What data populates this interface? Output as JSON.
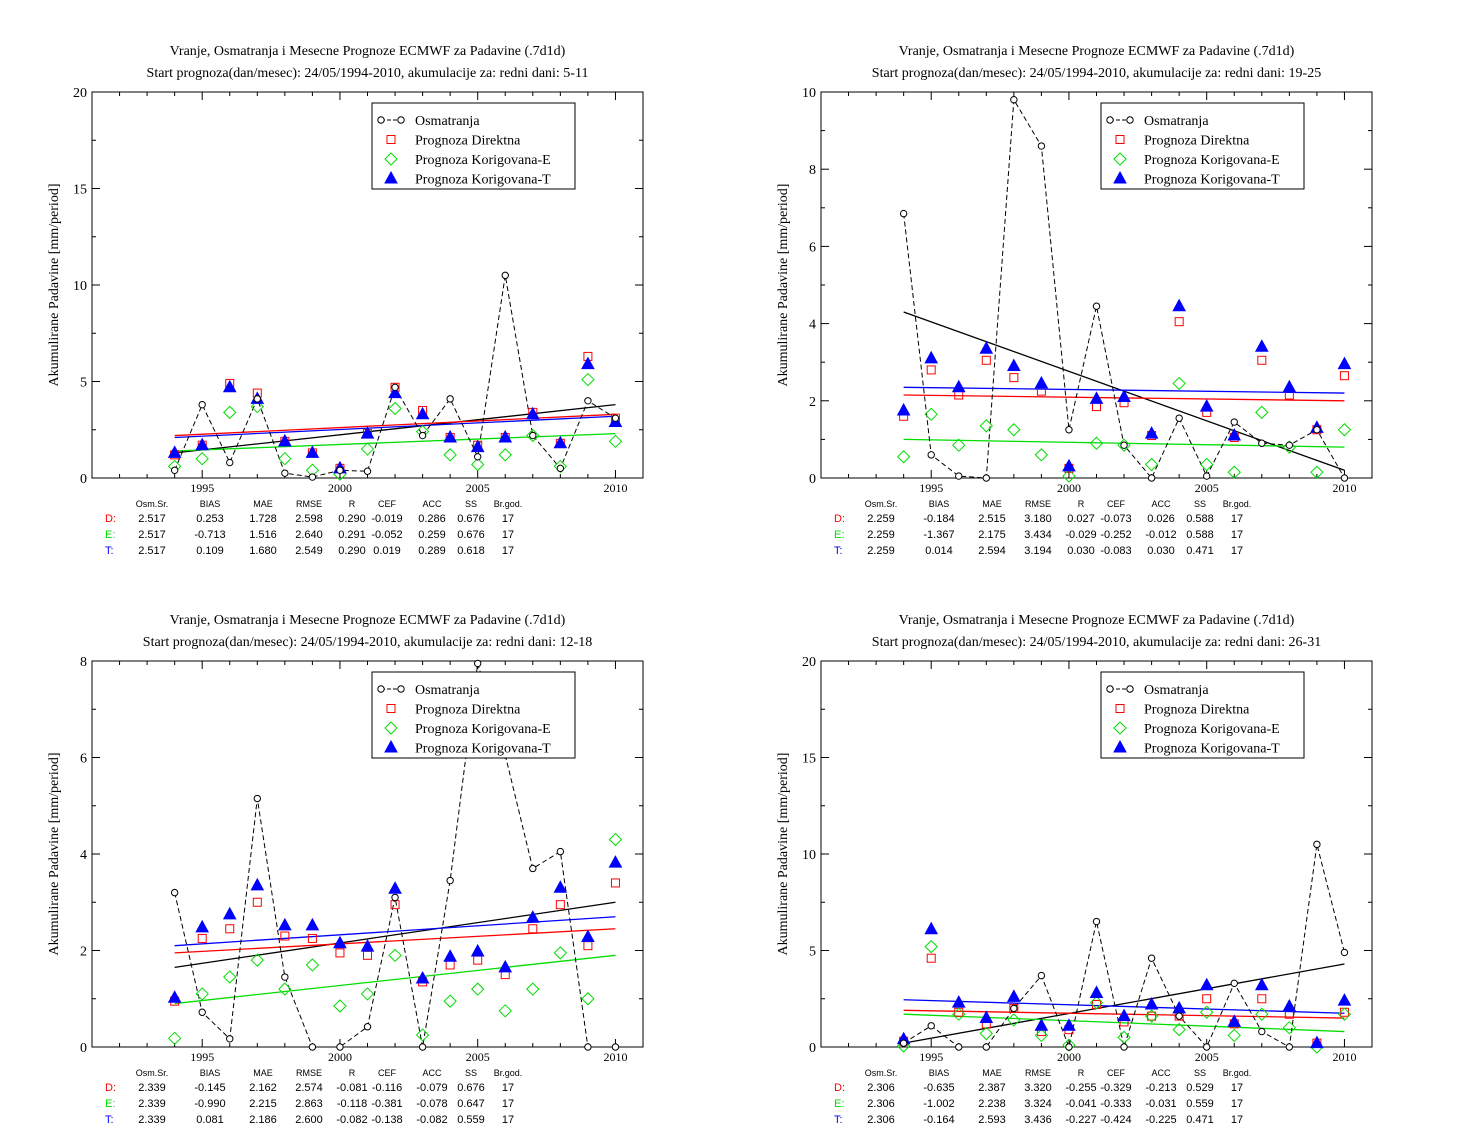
{
  "stats_header": [
    "Osm.Sr.",
    "BIAS",
    "MAE",
    "RMSE",
    "R",
    "CEF",
    "ACC",
    "SS",
    "Br.god."
  ],
  "colors": {
    "obs": "#000000",
    "direct": "#ff0000",
    "corrE": "#00dd00",
    "corrT": "#0000ff"
  },
  "chart_data": [
    {
      "type": "scatter",
      "title": "Vranje, Osmatranja i Mesecne Prognoze ECMWF za Padavine (.7d1d)",
      "subtitle": "Start prognoza(dan/mesec): 24/05/1994-2010, akumulacije za: redni dani: 5-11",
      "ylabel": "Akumulirane Padavine [mm/period]",
      "xlabel": "",
      "xlim": [
        1991,
        2011
      ],
      "ylim": [
        0,
        20
      ],
      "xticks": [
        1995,
        2000,
        2005,
        2010
      ],
      "yticks": [
        0,
        5,
        10,
        15,
        20
      ],
      "grid": false,
      "legend_position": "top-right",
      "x": [
        1994,
        1995,
        1996,
        1997,
        1998,
        1999,
        2000,
        2001,
        2002,
        2003,
        2004,
        2005,
        2006,
        2007,
        2008,
        2009,
        2010
      ],
      "series": [
        {
          "name": "Osmatranja",
          "values": [
            0.4,
            3.8,
            0.8,
            4.1,
            0.25,
            0.05,
            0.4,
            0.35,
            4.7,
            2.2,
            4.1,
            1.1,
            10.5,
            2.2,
            0.5,
            4.0,
            3.1
          ]
        },
        {
          "name": "Prognoza Direktna",
          "values": [
            1.2,
            1.7,
            4.9,
            4.4,
            1.9,
            1.3,
            0.5,
            2.3,
            4.7,
            3.5,
            2.1,
            1.7,
            2.1,
            3.4,
            1.8,
            6.3,
            3.1
          ]
        },
        {
          "name": "Prognoza Korigovana-E",
          "values": [
            0.6,
            1.0,
            3.4,
            3.7,
            1.0,
            0.4,
            0.2,
            1.5,
            3.6,
            2.4,
            1.2,
            0.7,
            1.2,
            2.2,
            0.6,
            5.1,
            1.9
          ]
        },
        {
          "name": "Prognoza Korigovana-T",
          "values": [
            1.3,
            1.7,
            4.7,
            4.1,
            1.9,
            1.3,
            0.5,
            2.3,
            4.4,
            3.3,
            2.1,
            1.6,
            2.1,
            3.3,
            1.8,
            5.9,
            2.9
          ]
        }
      ],
      "trends": {
        "obs": [
          1.3,
          3.8
        ],
        "direct": [
          2.2,
          3.3
        ],
        "corrE": [
          1.4,
          2.3
        ],
        "corrT": [
          2.1,
          3.2
        ]
      },
      "stats": [
        {
          "label": "D:",
          "values": [
            "2.517",
            "0.253",
            "1.728",
            "2.598",
            "0.290",
            "-0.019",
            "0.286",
            "0.676",
            "17"
          ]
        },
        {
          "label": "E:",
          "values": [
            "2.517",
            "-0.713",
            "1.516",
            "2.640",
            "0.291",
            "-0.052",
            "0.259",
            "0.676",
            "17"
          ]
        },
        {
          "label": "T:",
          "values": [
            "2.517",
            "0.109",
            "1.680",
            "2.549",
            "0.290",
            "0.019",
            "0.289",
            "0.618",
            "17"
          ]
        }
      ]
    },
    {
      "type": "scatter",
      "title": "Vranje, Osmatranja i Mesecne Prognoze ECMWF za Padavine (.7d1d)",
      "subtitle": "Start prognoza(dan/mesec): 24/05/1994-2010, akumulacije za: redni dani: 19-25",
      "ylabel": "Akumulirane Padavine [mm/period]",
      "xlabel": "",
      "xlim": [
        1991,
        2011
      ],
      "ylim": [
        0,
        10
      ],
      "xticks": [
        1995,
        2000,
        2005,
        2010
      ],
      "yticks": [
        0,
        2,
        4,
        6,
        8,
        10
      ],
      "grid": false,
      "legend_position": "top-right",
      "x": [
        1994,
        1995,
        1996,
        1997,
        1998,
        1999,
        2000,
        2001,
        2002,
        2003,
        2004,
        2005,
        2006,
        2007,
        2008,
        2009,
        2010
      ],
      "series": [
        {
          "name": "Osmatranja",
          "values": [
            6.85,
            0.6,
            0.05,
            0.0,
            9.8,
            8.6,
            1.25,
            4.45,
            0.85,
            0.0,
            1.55,
            0.05,
            1.45,
            0.9,
            0.85,
            1.25,
            0.0
          ]
        },
        {
          "name": "Prognoza Direktna",
          "values": [
            1.6,
            2.8,
            2.15,
            3.05,
            2.6,
            2.25,
            0.25,
            1.85,
            1.95,
            1.1,
            4.05,
            1.7,
            1.05,
            3.05,
            2.15,
            1.25,
            2.65
          ]
        },
        {
          "name": "Prognoza Korigovana-E",
          "values": [
            0.55,
            1.65,
            0.85,
            1.35,
            1.25,
            0.6,
            0.05,
            0.9,
            0.85,
            0.35,
            2.45,
            0.35,
            0.15,
            1.7,
            0.8,
            0.15,
            1.25
          ]
        },
        {
          "name": "Prognoza Korigovana-T",
          "values": [
            1.75,
            3.1,
            2.35,
            3.35,
            2.9,
            2.45,
            0.3,
            2.05,
            2.1,
            1.15,
            4.45,
            1.85,
            1.1,
            3.4,
            2.35,
            1.3,
            2.95
          ]
        }
      ],
      "trends": {
        "obs": [
          4.3,
          0.2
        ],
        "direct": [
          2.15,
          2.0
        ],
        "corrE": [
          1.0,
          0.8
        ],
        "corrT": [
          2.35,
          2.2
        ]
      },
      "stats": [
        {
          "label": "D:",
          "values": [
            "2.259",
            "-0.184",
            "2.515",
            "3.180",
            "0.027",
            "-0.073",
            "0.026",
            "0.588",
            "17"
          ]
        },
        {
          "label": "E:",
          "values": [
            "2.259",
            "-1.367",
            "2.175",
            "3.434",
            "-0.029",
            "-0.252",
            "-0.012",
            "0.588",
            "17"
          ]
        },
        {
          "label": "T:",
          "values": [
            "2.259",
            "0.014",
            "2.594",
            "3.194",
            "0.030",
            "-0.083",
            "0.030",
            "0.471",
            "17"
          ]
        }
      ]
    },
    {
      "type": "scatter",
      "title": "Vranje, Osmatranja i Mesecne Prognoze ECMWF za Padavine (.7d1d)",
      "subtitle": "Start prognoza(dan/mesec): 24/05/1994-2010, akumulacije za: redni dani: 12-18",
      "ylabel": "Akumulirane Padavine [mm/period]",
      "xlabel": "",
      "xlim": [
        1991,
        2011
      ],
      "ylim": [
        0,
        8
      ],
      "xticks": [
        1995,
        2000,
        2005,
        2010
      ],
      "yticks": [
        0,
        2,
        4,
        6,
        8
      ],
      "grid": false,
      "legend_position": "top-right",
      "x": [
        1994,
        1995,
        1996,
        1997,
        1998,
        1999,
        2000,
        2001,
        2002,
        2003,
        2004,
        2005,
        2006,
        2007,
        2008,
        2009,
        2010
      ],
      "series": [
        {
          "name": "Osmatranja",
          "values": [
            3.2,
            0.72,
            0.17,
            5.15,
            1.45,
            0.0,
            0.0,
            0.42,
            3.1,
            0.0,
            3.45,
            7.95,
            6.05,
            3.7,
            4.05,
            0.0,
            0.0
          ]
        },
        {
          "name": "Prognoza Direktna",
          "values": [
            0.95,
            2.25,
            2.45,
            3.0,
            2.3,
            2.25,
            1.95,
            1.9,
            2.95,
            1.35,
            1.7,
            1.8,
            1.5,
            2.45,
            2.95,
            2.1,
            3.4
          ]
        },
        {
          "name": "Prognoza Korigovana-E",
          "values": [
            0.18,
            1.1,
            1.45,
            1.8,
            1.2,
            1.7,
            0.85,
            1.1,
            1.9,
            0.25,
            0.95,
            1.2,
            0.75,
            1.2,
            1.95,
            1.0,
            4.3
          ]
        },
        {
          "name": "Prognoza Korigovana-T",
          "values": [
            1.02,
            2.48,
            2.75,
            3.35,
            2.52,
            2.52,
            2.15,
            2.08,
            3.28,
            1.42,
            1.87,
            1.98,
            1.65,
            2.68,
            3.3,
            2.28,
            3.82
          ]
        }
      ],
      "trends": {
        "obs": [
          1.65,
          3.0
        ],
        "direct": [
          1.95,
          2.45
        ],
        "corrE": [
          0.9,
          1.9
        ],
        "corrT": [
          2.1,
          2.7
        ]
      },
      "stats": [
        {
          "label": "D:",
          "values": [
            "2.339",
            "-0.145",
            "2.162",
            "2.574",
            "-0.081",
            "-0.116",
            "-0.079",
            "0.676",
            "17"
          ]
        },
        {
          "label": "E:",
          "values": [
            "2.339",
            "-0.990",
            "2.215",
            "2.863",
            "-0.118",
            "-0.381",
            "-0.078",
            "0.647",
            "17"
          ]
        },
        {
          "label": "T:",
          "values": [
            "2.339",
            "0.081",
            "2.186",
            "2.600",
            "-0.082",
            "-0.138",
            "-0.082",
            "0.559",
            "17"
          ]
        }
      ]
    },
    {
      "type": "scatter",
      "title": "Vranje, Osmatranja i Mesecne Prognoze ECMWF za Padavine (.7d1d)",
      "subtitle": "Start prognoza(dan/mesec): 24/05/1994-2010, akumulacije za: redni dani: 26-31",
      "ylabel": "Akumulirane Padavine [mm/period]",
      "xlabel": "",
      "xlim": [
        1991,
        2011
      ],
      "ylim": [
        0,
        20
      ],
      "xticks": [
        1995,
        2000,
        2005,
        2010
      ],
      "yticks": [
        0,
        5,
        10,
        15,
        20
      ],
      "grid": false,
      "legend_position": "top-right",
      "x": [
        1994,
        1995,
        1996,
        1997,
        1998,
        1999,
        2000,
        2001,
        2002,
        2003,
        2004,
        2005,
        2006,
        2007,
        2008,
        2009,
        2010
      ],
      "series": [
        {
          "name": "Osmatranja",
          "values": [
            0.2,
            1.1,
            0.0,
            0.0,
            2.0,
            3.7,
            0.0,
            6.5,
            0.0,
            4.6,
            1.6,
            0.0,
            3.3,
            0.8,
            0.0,
            10.5,
            4.9
          ]
        },
        {
          "name": "Prognoza Direktna",
          "values": [
            0.3,
            4.6,
            1.8,
            1.2,
            2.0,
            0.8,
            0.9,
            2.2,
            1.3,
            1.6,
            1.6,
            2.5,
            1.2,
            2.5,
            1.7,
            0.2,
            1.8
          ]
        },
        {
          "name": "Prognoza Korigovana-E",
          "values": [
            0.05,
            5.2,
            1.7,
            0.7,
            1.4,
            0.6,
            0.1,
            2.3,
            0.5,
            1.6,
            0.9,
            1.8,
            0.6,
            1.7,
            1.0,
            0.0,
            1.7
          ]
        },
        {
          "name": "Prognoza Korigovana-T",
          "values": [
            0.4,
            6.1,
            2.3,
            1.5,
            2.6,
            1.1,
            1.1,
            2.8,
            1.6,
            2.2,
            2.0,
            3.2,
            1.3,
            3.2,
            2.1,
            0.2,
            2.4
          ]
        }
      ],
      "trends": {
        "obs": [
          0.2,
          4.3
        ],
        "direct": [
          1.9,
          1.5
        ],
        "corrE": [
          1.7,
          0.8
        ],
        "corrT": [
          2.45,
          1.75
        ]
      },
      "stats": [
        {
          "label": "D:",
          "values": [
            "2.306",
            "-0.635",
            "2.387",
            "3.320",
            "-0.255",
            "-0.329",
            "-0.213",
            "0.529",
            "17"
          ]
        },
        {
          "label": "E:",
          "values": [
            "2.306",
            "-1.002",
            "2.238",
            "3.324",
            "-0.041",
            "-0.333",
            "-0.031",
            "0.559",
            "17"
          ]
        },
        {
          "label": "T:",
          "values": [
            "2.306",
            "-0.164",
            "2.593",
            "3.436",
            "-0.227",
            "-0.424",
            "-0.225",
            "0.471",
            "17"
          ]
        }
      ]
    }
  ]
}
